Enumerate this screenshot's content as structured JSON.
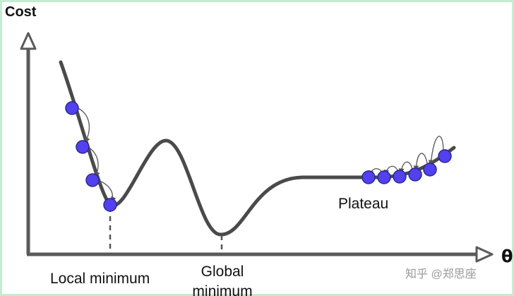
{
  "axes": {
    "y_label": "Cost",
    "x_label": "θ"
  },
  "annotations": {
    "local_minimum": "Local minimum",
    "global_minimum_line1": "Global",
    "global_minimum_line2": "minimum",
    "plateau": "Plateau"
  },
  "watermark": "知乎 @郑思座",
  "colors": {
    "curve": "#4a4a4a",
    "axis": "#5a5a5a",
    "step_ball": "#5340f0",
    "step_ball_outline": "#2a2a8a",
    "hop_arrow": "#555555",
    "guide_line": "#555555"
  }
}
